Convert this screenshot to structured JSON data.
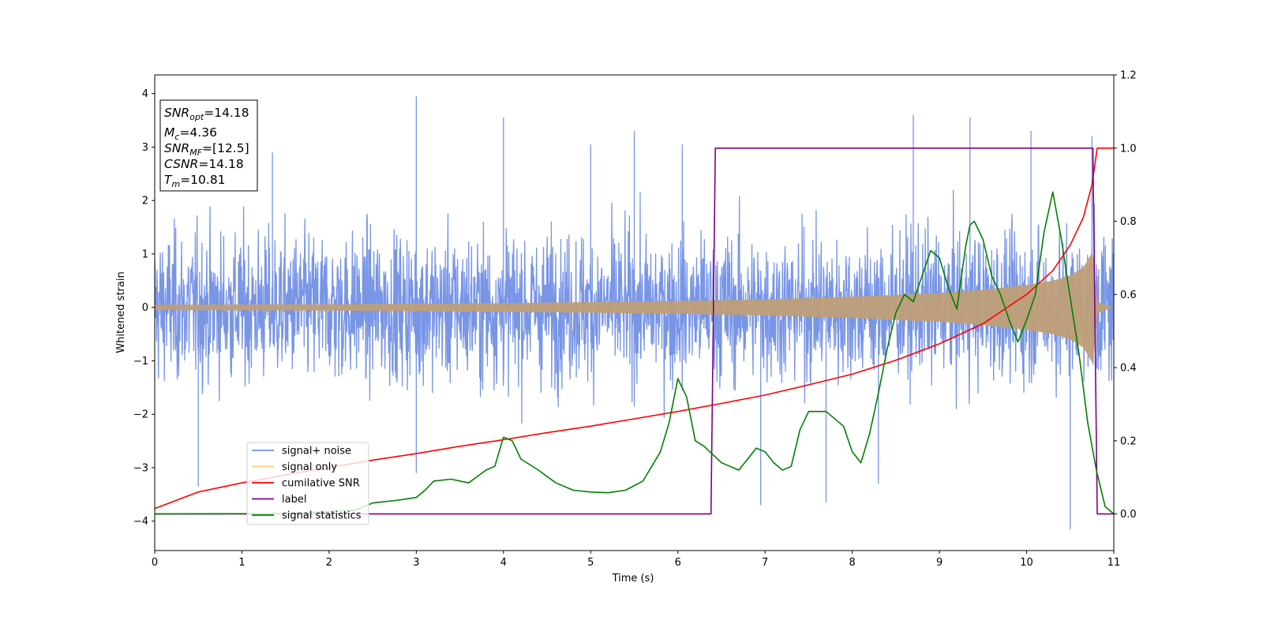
{
  "chart_data": {
    "type": "line",
    "xlabel": "Time (s)",
    "ylabel": "Whitened strain",
    "xlim": [
      0,
      11
    ],
    "ylim": [
      -4.55,
      4.35
    ],
    "y2lim": [
      -0.1,
      1.2
    ],
    "xticks": [
      0,
      1,
      2,
      3,
      4,
      5,
      6,
      7,
      8,
      9,
      10,
      11
    ],
    "yticks": [
      -4,
      -3,
      -2,
      -1,
      0,
      1,
      2,
      3,
      4
    ],
    "y2ticks": [
      0.0,
      0.2,
      0.4,
      0.6,
      0.8,
      1.0,
      1.2
    ],
    "y2tick_labels": [
      "0.0",
      "0.2",
      "0.4",
      "0.6",
      "0.8",
      "1.0",
      "1.2"
    ],
    "info_box": {
      "snr_opt": {
        "sym": "SNR",
        "sub": "opt",
        "value": "=14.18"
      },
      "mc": {
        "sym": "M",
        "sub": "c",
        "value": "=4.36"
      },
      "snr_mf": {
        "sym": "SNR",
        "sub": "MF",
        "value": "=[12.5]"
      },
      "csnr": {
        "sym": "CSNR",
        "sub": "",
        "value": "=14.18"
      },
      "tm": {
        "sym": "T",
        "sub": "m",
        "value": "=10.81"
      }
    },
    "legend_position": "lower-left",
    "series": [
      {
        "name": "signal+ noise",
        "color": "#7895e6",
        "axis": "left",
        "note": "whitened noisy strain, amplitude roughly ±2.5 with spikes up to ±4",
        "envelope": [
          [
            0,
            1.6
          ],
          [
            11,
            1.6
          ]
        ],
        "spikes": [
          [
            0.5,
            -3.35
          ],
          [
            1.35,
            2.9
          ],
          [
            3.0,
            3.95
          ],
          [
            3.0,
            -3.1
          ],
          [
            4.0,
            3.55
          ],
          [
            5.0,
            3.05
          ],
          [
            5.5,
            3.3
          ],
          [
            6.05,
            3.05
          ],
          [
            6.95,
            -3.7
          ],
          [
            7.7,
            -3.65
          ],
          [
            8.3,
            -3.3
          ],
          [
            8.7,
            3.6
          ],
          [
            9.35,
            3.55
          ],
          [
            10.05,
            3.3
          ],
          [
            10.5,
            -4.15
          ],
          [
            10.75,
            3.2
          ]
        ]
      },
      {
        "name": "signal only",
        "color": "#fdca7e",
        "axis": "left",
        "note": "chirp envelope",
        "envelope": [
          [
            0,
            0.05
          ],
          [
            2,
            0.06
          ],
          [
            4,
            0.08
          ],
          [
            6,
            0.12
          ],
          [
            7,
            0.15
          ],
          [
            8,
            0.2
          ],
          [
            9,
            0.27
          ],
          [
            9.5,
            0.33
          ],
          [
            10,
            0.42
          ],
          [
            10.3,
            0.5
          ],
          [
            10.5,
            0.6
          ],
          [
            10.65,
            0.75
          ],
          [
            10.76,
            1.05
          ],
          [
            10.81,
            0.1
          ],
          [
            11,
            0.0
          ]
        ]
      },
      {
        "name": "cumilative SNR",
        "color": "#ff0000",
        "axis": "right",
        "x": [
          0,
          0.5,
          1,
          1.5,
          2,
          2.5,
          3,
          3.5,
          4,
          4.5,
          5,
          5.5,
          6,
          6.5,
          7,
          7.5,
          8,
          8.5,
          9,
          9.5,
          10,
          10.3,
          10.5,
          10.65,
          10.75,
          10.81,
          11
        ],
        "y": [
          0.015,
          0.06,
          0.085,
          0.107,
          0.127,
          0.147,
          0.165,
          0.185,
          0.203,
          0.222,
          0.24,
          0.26,
          0.28,
          0.302,
          0.325,
          0.353,
          0.382,
          0.42,
          0.465,
          0.52,
          0.6,
          0.665,
          0.735,
          0.81,
          0.9,
          1.0,
          1.0
        ]
      },
      {
        "name": "label",
        "color": "#800080",
        "axis": "right",
        "x": [
          0,
          6.38,
          6.43,
          10.76,
          10.81,
          11
        ],
        "y": [
          0.0,
          0.0,
          1.0,
          1.0,
          0.0,
          0.0
        ]
      },
      {
        "name": "signal statistics",
        "color": "#008000",
        "axis": "right",
        "x": [
          0,
          1.5,
          2.3,
          2.5,
          2.8,
          3.0,
          3.1,
          3.2,
          3.4,
          3.6,
          3.8,
          3.9,
          4.0,
          4.1,
          4.2,
          4.4,
          4.6,
          4.8,
          5.0,
          5.2,
          5.4,
          5.6,
          5.7,
          5.8,
          5.9,
          6.0,
          6.1,
          6.2,
          6.3,
          6.5,
          6.7,
          6.9,
          7.0,
          7.1,
          7.2,
          7.3,
          7.4,
          7.5,
          7.7,
          7.9,
          8.0,
          8.1,
          8.2,
          8.3,
          8.4,
          8.5,
          8.6,
          8.7,
          8.8,
          8.9,
          9.0,
          9.1,
          9.2,
          9.3,
          9.35,
          9.4,
          9.5,
          9.6,
          9.7,
          9.8,
          9.9,
          10.0,
          10.1,
          10.2,
          10.3,
          10.4,
          10.5,
          10.6,
          10.7,
          10.8,
          10.9,
          11.0
        ],
        "y": [
          0.0,
          0.001,
          0.01,
          0.03,
          0.038,
          0.045,
          0.065,
          0.09,
          0.095,
          0.085,
          0.12,
          0.13,
          0.21,
          0.2,
          0.15,
          0.12,
          0.085,
          0.065,
          0.06,
          0.058,
          0.065,
          0.09,
          0.13,
          0.17,
          0.25,
          0.37,
          0.32,
          0.2,
          0.185,
          0.14,
          0.12,
          0.18,
          0.17,
          0.14,
          0.12,
          0.13,
          0.23,
          0.28,
          0.28,
          0.24,
          0.17,
          0.14,
          0.22,
          0.33,
          0.45,
          0.55,
          0.6,
          0.58,
          0.65,
          0.72,
          0.7,
          0.62,
          0.56,
          0.73,
          0.79,
          0.8,
          0.75,
          0.65,
          0.6,
          0.53,
          0.47,
          0.53,
          0.6,
          0.77,
          0.88,
          0.75,
          0.59,
          0.44,
          0.25,
          0.12,
          0.02,
          0.0
        ]
      }
    ]
  }
}
